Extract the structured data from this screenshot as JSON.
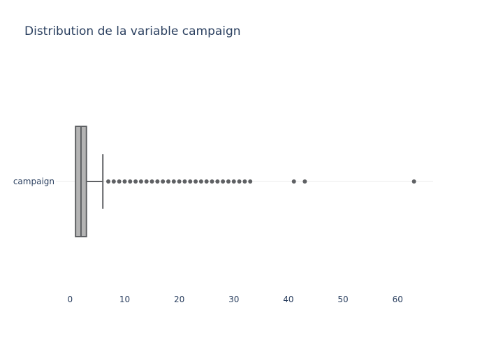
{
  "chart_data": {
    "type": "box",
    "title": "Distribution de la variable campaign",
    "orientation": "horizontal",
    "series": [
      {
        "name": "campaign",
        "min": 1,
        "q1": 1,
        "median": 2,
        "q3": 3,
        "whisker_high": 6,
        "outliers": [
          7,
          8,
          9,
          10,
          11,
          12,
          13,
          14,
          15,
          16,
          17,
          18,
          19,
          20,
          21,
          22,
          23,
          24,
          25,
          26,
          27,
          28,
          29,
          30,
          31,
          32,
          33,
          41,
          43,
          63
        ]
      }
    ],
    "y_tick_labels": [
      "campaign"
    ],
    "x_ticks": [
      0,
      10,
      20,
      30,
      40,
      50,
      60
    ],
    "xlim": [
      -2.6,
      66.5
    ],
    "grid": true,
    "colors": {
      "box_fill": "#b4b4b4",
      "box_line": "#5f6164",
      "points": "#5f6164",
      "grid": "#ebebeb",
      "text": "#2a3f5f"
    }
  }
}
